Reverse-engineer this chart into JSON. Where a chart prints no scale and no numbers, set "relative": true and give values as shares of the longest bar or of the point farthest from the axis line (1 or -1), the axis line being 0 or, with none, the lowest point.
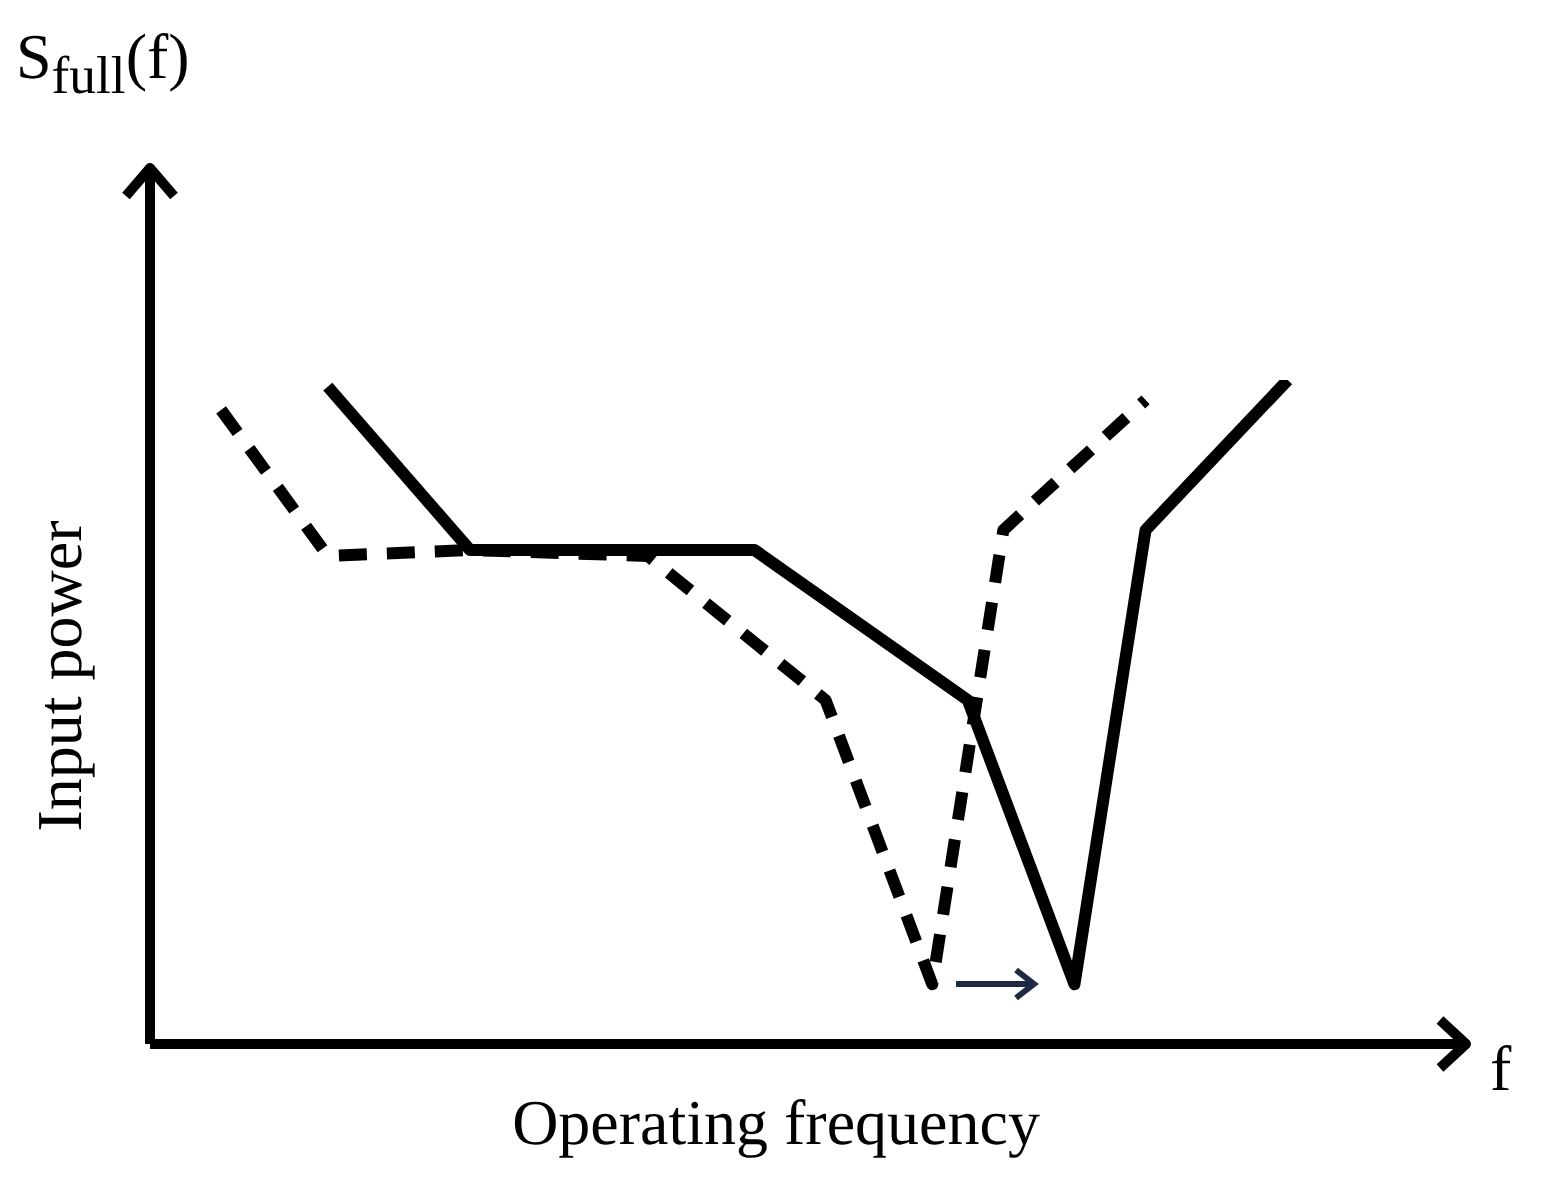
{
  "chart_data": {
    "type": "line",
    "relative": true,
    "xlabel": "Operating frequency",
    "ylabel": "Input power",
    "annotations": [
      "S$_{full}$(f)",
      "f"
    ],
    "grid": false,
    "marker": "none",
    "categories": [
      null,
      null,
      null,
      null,
      null,
      null,
      null,
      null,
      null,
      null,
      null,
      null,
      null,
      null,
      null,
      null,
      null,
      null,
      null,
      null,
      null,
      null,
      null,
      null,
      null,
      null,
      null,
      null,
      null,
      null,
      null,
      null,
      null,
      null,
      null,
      null,
      null
    ],
    "series": [
      {
        "color": "#000000",
        "line_style": "solid",
        "values": [
          null,
          null,
          null,
          null,
          null,
          0.99,
          null,
          null,
          null,
          0.744,
          null,
          null,
          null,
          null,
          null,
          null,
          null,
          0.744,
          null,
          null,
          null,
          null,
          null,
          0.518,
          null,
          null,
          0.09,
          null,
          0.774,
          null,
          null,
          null,
          1,
          null,
          null,
          null,
          null
        ]
      },
      {
        "color": "#000000",
        "line_style": "dashed",
        "values": [
          null,
          null,
          0.955,
          null,
          null,
          0.735,
          null,
          null,
          null,
          0.744,
          null,
          null,
          null,
          null,
          0.735,
          null,
          null,
          null,
          null,
          0.518,
          null,
          null,
          0.09,
          null,
          0.774,
          null,
          null,
          null,
          0.97,
          null,
          null,
          null,
          null,
          null,
          null,
          null,
          null
        ]
      }
    ]
  }
}
